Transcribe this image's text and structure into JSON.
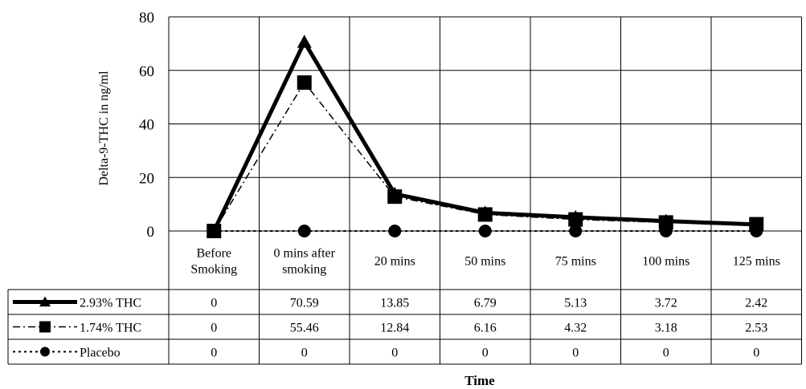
{
  "chart_data": {
    "type": "line",
    "ylabel": "Delta-9-THC in ng/ml",
    "xlabel": "Time",
    "ylim": [
      0,
      80
    ],
    "yticks": [
      0,
      20,
      40,
      60,
      80
    ],
    "grid": true,
    "categories": [
      [
        "Before",
        "Smoking"
      ],
      [
        "0 mins after",
        "smoking"
      ],
      [
        "20 mins"
      ],
      [
        "50 mins"
      ],
      [
        "75 mins"
      ],
      [
        "100 mins"
      ],
      [
        "125 mins"
      ]
    ],
    "series": [
      {
        "name": "2.93% THC",
        "marker": "triangle",
        "line": "solid-thick",
        "values": [
          0,
          70.59,
          13.85,
          6.79,
          5.13,
          3.72,
          2.42
        ],
        "labels": [
          "0",
          "70.59",
          "13.85",
          "6.79",
          "5.13",
          "3.72",
          "2.42"
        ]
      },
      {
        "name": "1.74% THC",
        "marker": "square",
        "line": "dash-dot",
        "values": [
          0,
          55.46,
          12.84,
          6.16,
          4.32,
          3.18,
          2.53
        ],
        "labels": [
          "0",
          "55.46",
          "12.84",
          "6.16",
          "4.32",
          "3.18",
          "2.53"
        ]
      },
      {
        "name": "Placebo",
        "marker": "circle",
        "line": "dotted",
        "values": [
          0,
          0,
          0,
          0,
          0,
          0,
          0
        ],
        "labels": [
          "0",
          "0",
          "0",
          "0",
          "0",
          "0",
          "0"
        ]
      }
    ]
  }
}
